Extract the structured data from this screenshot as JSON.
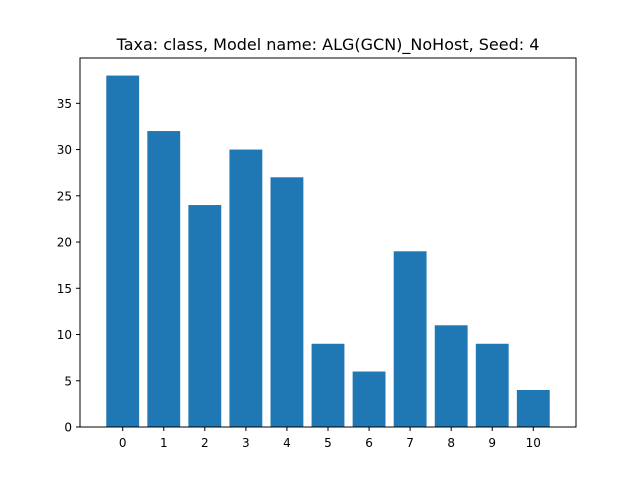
{
  "chart_data": {
    "type": "bar",
    "title": "Taxa: class, Model name: ALG(GCN)_NoHost, Seed: 4",
    "xlabel": "",
    "ylabel": "",
    "categories": [
      "0",
      "1",
      "2",
      "3",
      "4",
      "5",
      "6",
      "7",
      "8",
      "9",
      "10"
    ],
    "values": [
      38,
      32,
      24,
      30,
      27,
      9,
      6,
      19,
      11,
      9,
      4
    ],
    "yticks": [
      "0",
      "5",
      "10",
      "15",
      "20",
      "25",
      "30",
      "35"
    ],
    "ylim": [
      0,
      39.9
    ],
    "grid": false,
    "legend": "none",
    "bar_color": "#1f77b4"
  }
}
